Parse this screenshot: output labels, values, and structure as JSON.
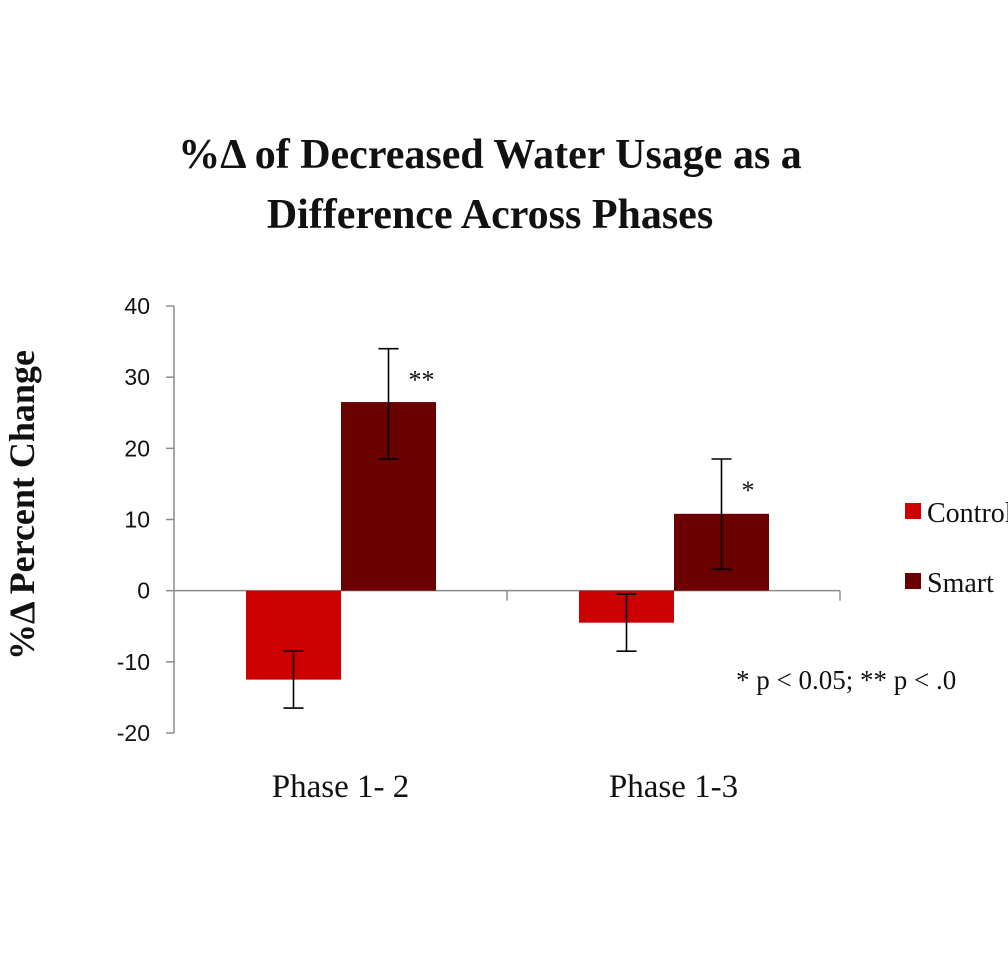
{
  "chart_data": {
    "type": "bar",
    "title_lines": [
      "%Δ of Decreased Water Usage as a",
      "Difference Across Phases"
    ],
    "ylabel": "%Δ  Percent Change",
    "xlabel": "",
    "ylim": [
      -20,
      40
    ],
    "yticks": [
      -20,
      -10,
      0,
      10,
      20,
      30,
      40
    ],
    "categories": [
      "Phase 1- 2",
      "Phase 1-3"
    ],
    "series": [
      {
        "name": "Control",
        "color": "#cc0000",
        "values": [
          -12.5,
          -4.5
        ],
        "error_low": [
          -16.5,
          -8.5
        ],
        "error_high": [
          -8.5,
          -0.5
        ],
        "significance": [
          "",
          ""
        ]
      },
      {
        "name": "Smart",
        "color": "#6b0000",
        "values": [
          26.5,
          10.8
        ],
        "error_low": [
          18.5,
          3.0
        ],
        "error_high": [
          34.0,
          18.5
        ],
        "significance": [
          "**",
          "*"
        ]
      }
    ],
    "legend_position": "right",
    "note": "* p < 0.05; ** p < .0",
    "grid": false
  }
}
